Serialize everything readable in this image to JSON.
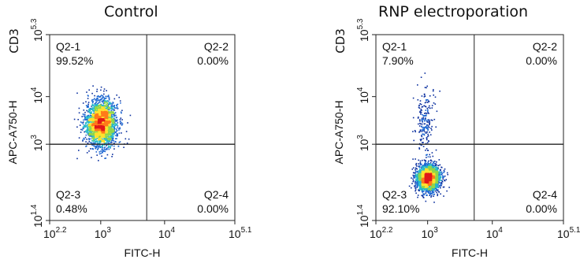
{
  "chart_data": [
    {
      "type": "scatter",
      "title": "Control",
      "marker_label": "CD3",
      "xlabel": "FITC-H",
      "ylabel": "APC-A750-H",
      "x_ticks": [
        {
          "base": "10",
          "exp": "2.2"
        },
        {
          "base": "10",
          "exp": "3"
        },
        {
          "base": "10",
          "exp": "4"
        },
        {
          "base": "10",
          "exp": "5.1"
        }
      ],
      "y_ticks": [
        {
          "base": "10",
          "exp": "1.4"
        },
        {
          "base": "10",
          "exp": "3"
        },
        {
          "base": "10",
          "exp": "4"
        },
        {
          "base": "10",
          "exp": "5.3"
        }
      ],
      "xlim_log10": [
        2.2,
        5.1
      ],
      "ylim_log10": [
        1.4,
        5.3
      ],
      "scale": "log",
      "gate_log10": {
        "x": 3.72,
        "y": 3.0
      },
      "quadrants": [
        {
          "name": "Q2-1",
          "percent": "99.52%",
          "position": "top-left"
        },
        {
          "name": "Q2-2",
          "percent": "0.00%",
          "position": "top-right"
        },
        {
          "name": "Q2-3",
          "percent": "0.48%",
          "position": "bottom-left"
        },
        {
          "name": "Q2-4",
          "percent": "0.00%",
          "position": "bottom-right"
        }
      ],
      "populations": [
        {
          "center_log10": [
            3.0,
            3.45
          ],
          "spread_log10": [
            0.12,
            0.24
          ],
          "share": 0.995
        }
      ],
      "colormap": [
        "#0a2f9e",
        "#1c66d1",
        "#25b8c9",
        "#8fd64a",
        "#ffe22e",
        "#ff7a1a",
        "#e0181a"
      ]
    },
    {
      "type": "scatter",
      "title": "RNP electroporation",
      "marker_label": "CD3",
      "xlabel": "FITC-H",
      "ylabel": "APC-A750-H",
      "x_ticks": [
        {
          "base": "10",
          "exp": "2.2"
        },
        {
          "base": "10",
          "exp": "3"
        },
        {
          "base": "10",
          "exp": "4"
        },
        {
          "base": "10",
          "exp": "5.1"
        }
      ],
      "y_ticks": [
        {
          "base": "10",
          "exp": "1.4"
        },
        {
          "base": "10",
          "exp": "3"
        },
        {
          "base": "10",
          "exp": "4"
        },
        {
          "base": "10",
          "exp": "5.3"
        }
      ],
      "xlim_log10": [
        2.2,
        5.1
      ],
      "ylim_log10": [
        1.4,
        5.3
      ],
      "scale": "log",
      "gate_log10": {
        "x": 3.72,
        "y": 3.0
      },
      "quadrants": [
        {
          "name": "Q2-1",
          "percent": "7.90%",
          "position": "top-left"
        },
        {
          "name": "Q2-2",
          "percent": "0.00%",
          "position": "top-right"
        },
        {
          "name": "Q2-3",
          "percent": "92.10%",
          "position": "bottom-left"
        },
        {
          "name": "Q2-4",
          "percent": "0.00%",
          "position": "bottom-right"
        }
      ],
      "populations": [
        {
          "center_log10": [
            3.0,
            2.3
          ],
          "spread_log10": [
            0.09,
            0.14
          ],
          "share": 0.921
        },
        {
          "center_log10": [
            2.95,
            3.5
          ],
          "spread_log10": [
            0.07,
            0.35
          ],
          "share": 0.079
        }
      ],
      "colormap": [
        "#0a2f9e",
        "#1c66d1",
        "#25b8c9",
        "#8fd64a",
        "#ffe22e",
        "#ff7a1a",
        "#e0181a"
      ]
    }
  ]
}
